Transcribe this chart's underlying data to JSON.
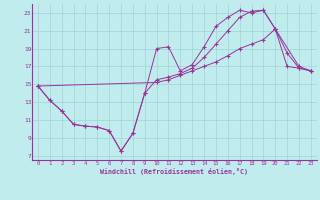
{
  "bg_color": "#c0ecee",
  "grid_color": "#a0d4d8",
  "line_color": "#993399",
  "xlabel": "Windchill (Refroidissement éolien,°C)",
  "xlim": [
    -0.5,
    23.5
  ],
  "ylim": [
    6.5,
    24.0
  ],
  "xticks": [
    0,
    1,
    2,
    3,
    4,
    5,
    6,
    7,
    8,
    9,
    10,
    11,
    12,
    13,
    14,
    15,
    16,
    17,
    18,
    19,
    20,
    21,
    22,
    23
  ],
  "yticks": [
    7,
    9,
    11,
    13,
    15,
    17,
    19,
    21,
    23
  ],
  "line1_x": [
    0,
    1,
    2,
    3,
    4,
    5,
    6,
    7,
    8,
    9,
    10,
    11,
    12,
    13,
    14,
    15,
    16,
    17,
    18,
    19,
    20,
    21,
    22,
    23
  ],
  "line1_y": [
    14.8,
    13.2,
    12.0,
    10.5,
    10.3,
    10.2,
    9.8,
    7.5,
    9.5,
    14.0,
    19.0,
    19.2,
    16.5,
    17.2,
    19.2,
    21.5,
    22.5,
    23.3,
    23.0,
    23.3,
    21.2,
    17.0,
    16.8,
    16.5
  ],
  "line2_x": [
    0,
    10,
    11,
    12,
    13,
    14,
    15,
    16,
    17,
    18,
    19,
    20,
    22,
    23
  ],
  "line2_y": [
    14.8,
    15.2,
    15.5,
    16.0,
    16.5,
    17.0,
    17.5,
    18.2,
    19.0,
    19.5,
    20.0,
    21.2,
    17.0,
    16.5
  ],
  "line3_x": [
    0,
    1,
    2,
    3,
    4,
    5,
    6,
    7,
    8,
    9,
    10,
    11,
    12,
    13,
    14,
    15,
    16,
    17,
    18,
    19,
    20,
    21,
    22,
    23
  ],
  "line3_y": [
    14.8,
    13.2,
    12.0,
    10.5,
    10.3,
    10.2,
    9.8,
    7.5,
    9.5,
    14.0,
    15.5,
    15.8,
    16.2,
    16.8,
    18.0,
    19.5,
    21.0,
    22.5,
    23.2,
    23.3,
    21.2,
    18.5,
    16.8,
    16.5
  ]
}
